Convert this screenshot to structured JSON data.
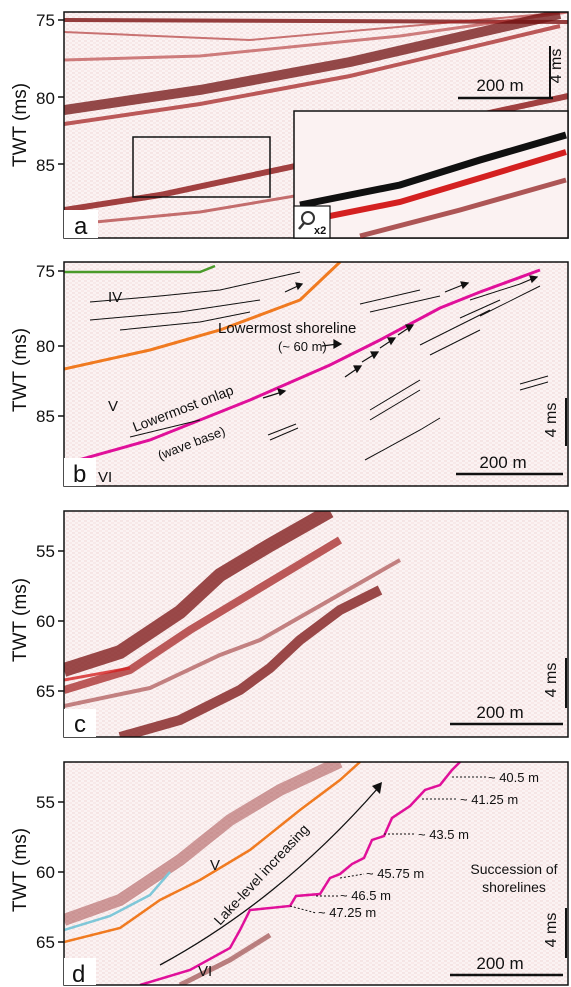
{
  "colors": {
    "reflector": "#8b1414",
    "strong_reflector": "#d42020",
    "green_horizon": "#4a9a2a",
    "orange_horizon": "#f07a20",
    "magenta_horizon": "#e0109a",
    "cyan_horizon": "#7fc7d8"
  },
  "panels": [
    {
      "label": "a",
      "axis_label": "TWT (ms)",
      "ticks": [
        "75",
        "80",
        "85"
      ],
      "scale_time": "4 ms",
      "scale_distance": "200 m",
      "inset_zoom": "x2",
      "inset_icon": "magnifier-icon"
    },
    {
      "label": "b",
      "axis_label": "TWT (ms)",
      "ticks": [
        "75",
        "80",
        "85"
      ],
      "scale_time": "4 ms",
      "scale_distance": "200 m",
      "units": [
        "IV",
        "V",
        "VI"
      ],
      "annotations": {
        "shoreline": "Lowermost shoreline",
        "shoreline_depth": "(~ 60 m)",
        "onlap": "Lowermost onlap",
        "wave_base": "(wave base)"
      }
    },
    {
      "label": "c",
      "axis_label": "TWT (ms)",
      "ticks": [
        "55",
        "60",
        "65"
      ],
      "scale_time": "4 ms",
      "scale_distance": "200 m"
    },
    {
      "label": "d",
      "axis_label": "TWT (ms)",
      "ticks": [
        "55",
        "60",
        "65"
      ],
      "scale_time": "4 ms",
      "scale_distance": "200 m",
      "units": [
        "V",
        "VI"
      ],
      "lake_level": "Lake-level increasing",
      "succession_line1": "Succession of",
      "succession_line2": "shorelines",
      "shoreline_depths": [
        "~ 40.5 m",
        "~ 41.25 m",
        "~ 43.5 m",
        "~ 45.75 m",
        "~ 46.5 m",
        "~ 47.25 m"
      ]
    }
  ]
}
